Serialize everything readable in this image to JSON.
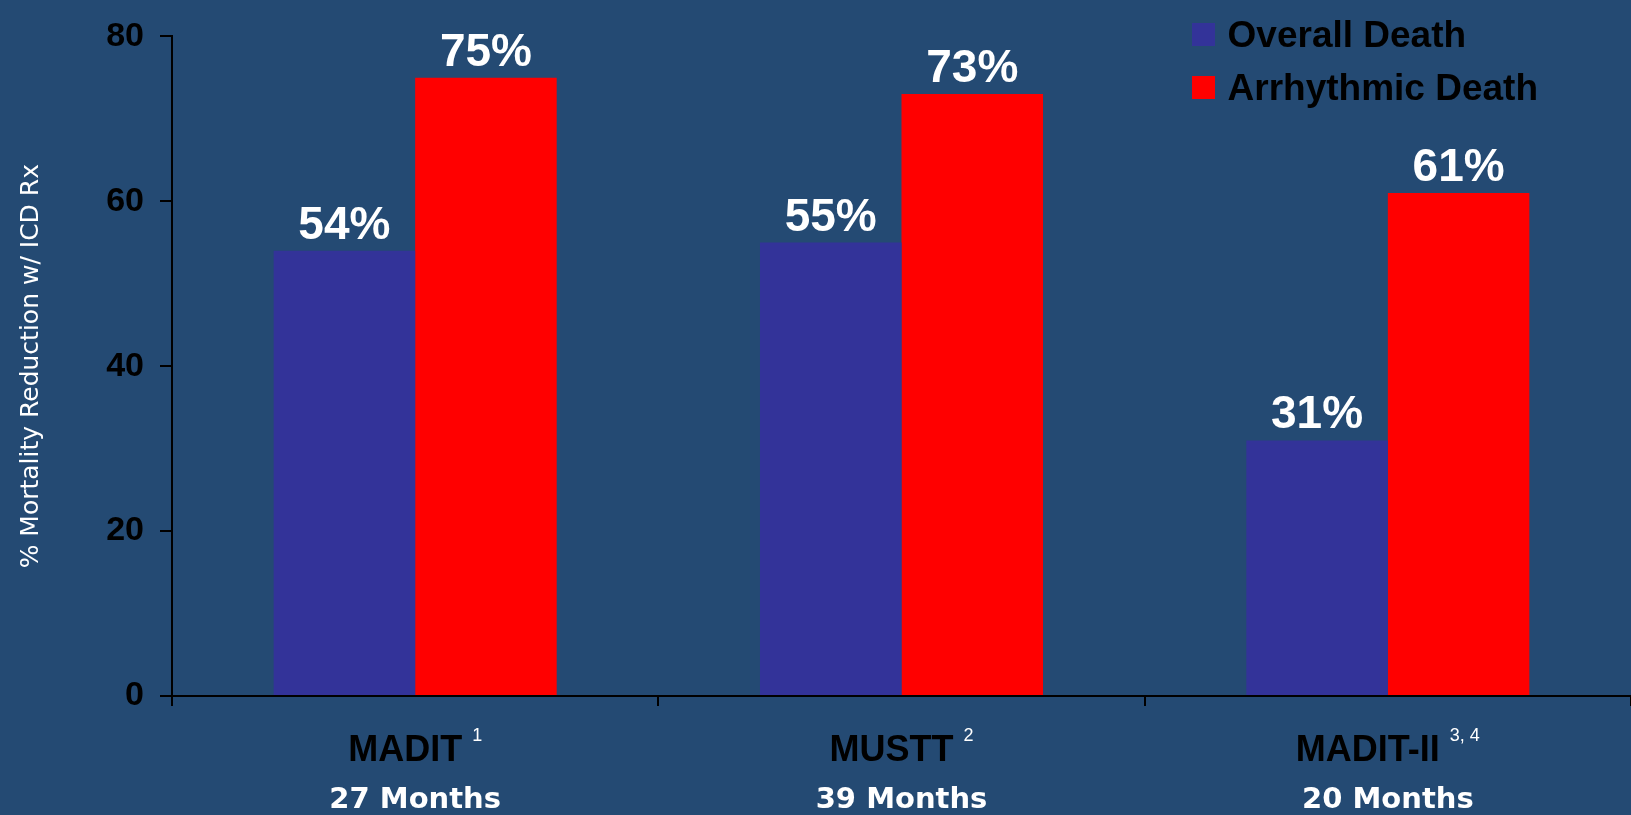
{
  "chart_data": {
    "type": "bar",
    "categories": [
      "MADIT $^{1}$\n27 Months",
      "MUSTT $^{2}$\n39 Months",
      "MADIT-II $^{3, 4}$\n20 Months"
    ],
    "series": [
      {
        "name": "Overall Death",
        "color": "#333399",
        "values": [
          54,
          55,
          31
        ],
        "value_labels": [
          "54%",
          "55%",
          "31%"
        ]
      },
      {
        "name": "Arrhythmic Death",
        "color": "#ff0000",
        "values": [
          75,
          73,
          61
        ],
        "value_labels": [
          "75%",
          "73%",
          "61%"
        ]
      }
    ],
    "ylabel": "% Mortality Reduction w/ ICD Rx",
    "ylim": [
      0,
      80
    ],
    "yticks": [
      0,
      20,
      40,
      60,
      80
    ],
    "legend": "top right"
  }
}
